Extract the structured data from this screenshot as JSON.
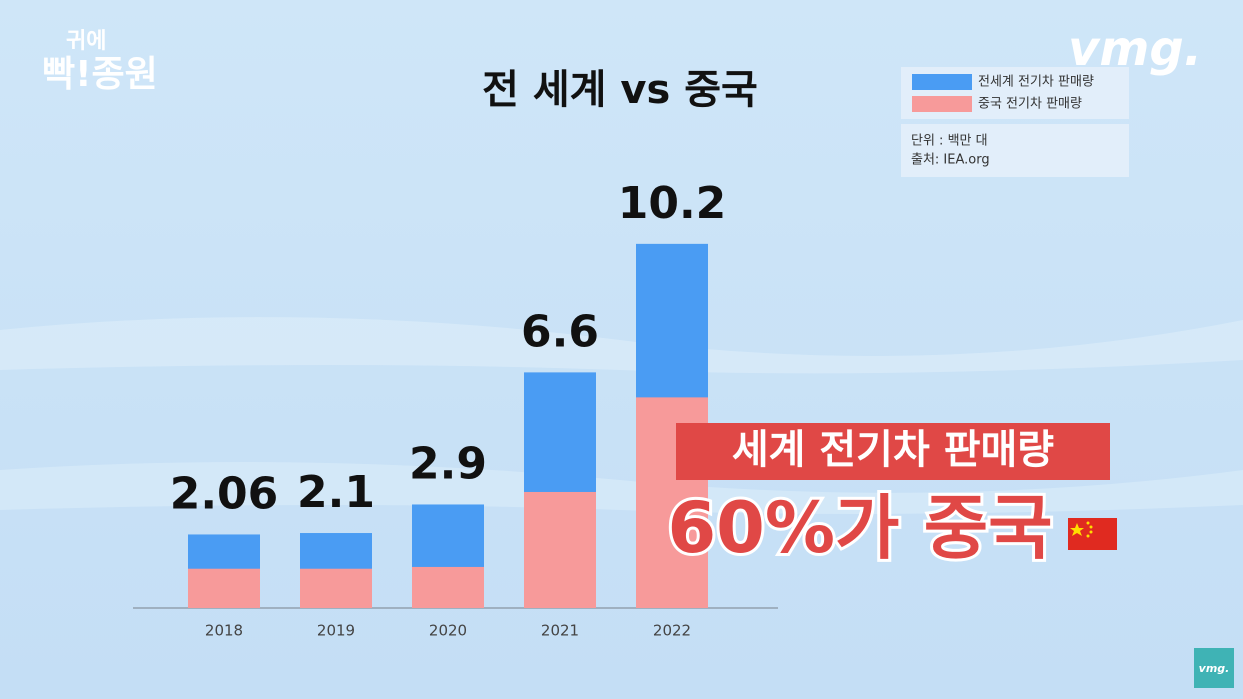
{
  "chart_data": {
    "type": "bar",
    "title": "전 세계 vs 중국",
    "categories": [
      "2018",
      "2019",
      "2020",
      "2021",
      "2022"
    ],
    "series": [
      {
        "name": "전세계 전기차 판매량",
        "color": "#4a9cf3",
        "values": [
          2.06,
          2.1,
          2.9,
          6.6,
          10.2
        ]
      },
      {
        "name": "중국 전기차 판매량",
        "color": "#f79a9a",
        "values": [
          1.1,
          1.1,
          1.15,
          3.25,
          5.9
        ]
      }
    ],
    "unit_note": "단위 : 백만 대",
    "source_note": "출처: IEA.org",
    "annotation": {
      "line1": "세계 전기차 판매량",
      "line2": "60%가 중국"
    }
  },
  "branding": {
    "show_logo_top": "귀에",
    "show_logo_bottom": "빡!종원",
    "channel_logo": "vmg.",
    "corner_logo": "vmg."
  }
}
